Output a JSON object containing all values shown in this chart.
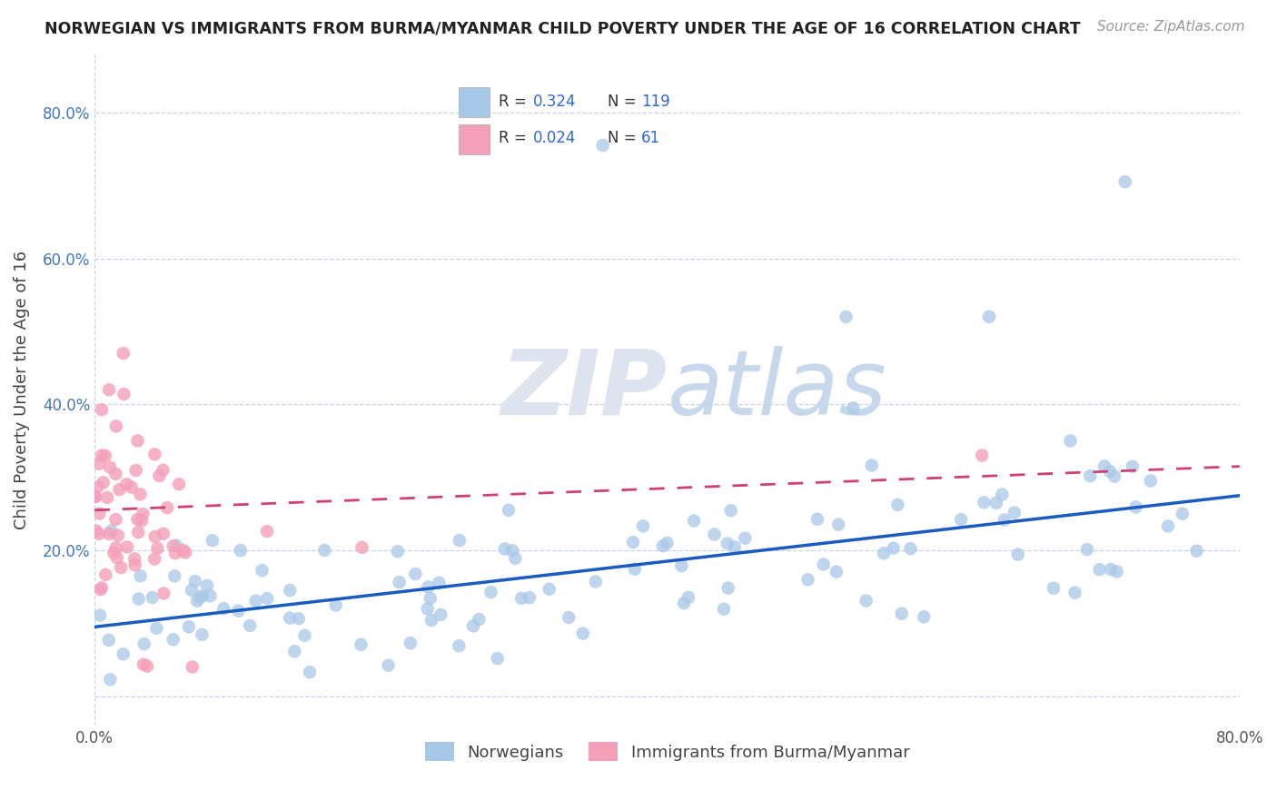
{
  "title": "NORWEGIAN VS IMMIGRANTS FROM BURMA/MYANMAR CHILD POVERTY UNDER THE AGE OF 16 CORRELATION CHART",
  "source": "Source: ZipAtlas.com",
  "ylabel": "Child Poverty Under the Age of 16",
  "xlim": [
    0.0,
    0.8
  ],
  "ylim": [
    -0.04,
    0.88
  ],
  "yticks": [
    0.0,
    0.2,
    0.4,
    0.6,
    0.8
  ],
  "ytick_labels": [
    "",
    "20.0%",
    "40.0%",
    "60.0%",
    "80.0%"
  ],
  "legend_label1": "Norwegians",
  "legend_label2": "Immigrants from Burma/Myanmar",
  "norwegian_color": "#a8c8e8",
  "burma_color": "#f4a0b8",
  "trendline_norwegian_color": "#1a5bbf",
  "trendline_burma_color": "#d04070",
  "watermark_color": "#ccd8ec",
  "background_color": "#ffffff",
  "grid_color": "#c8d4e8",
  "R1": 0.324,
  "N1": 119,
  "R2": 0.024,
  "N2": 61,
  "seed": 7
}
